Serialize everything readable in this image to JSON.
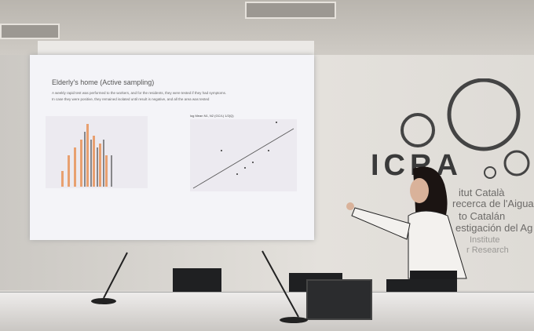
{
  "slide": {
    "title": "Elderly's home (Active sampling)",
    "text_1": "A weekly rapid test was performed to the workers, and for the residents, they were tested if they had symptoms.",
    "text_2": "In case they were positive, they remained isolated until result is negative, and all the area was tested",
    "chart_title": "log Mean N1, N2 (GC/L) 1/2(Q)"
  },
  "wall": {
    "logo": "ICRA",
    "line_1": "itut Català",
    "line_2": "recerca de l'Aigua",
    "line_3": "to Catalán",
    "line_4": "estigación del Ag",
    "line_5": "Institute",
    "line_6": "r Research"
  }
}
